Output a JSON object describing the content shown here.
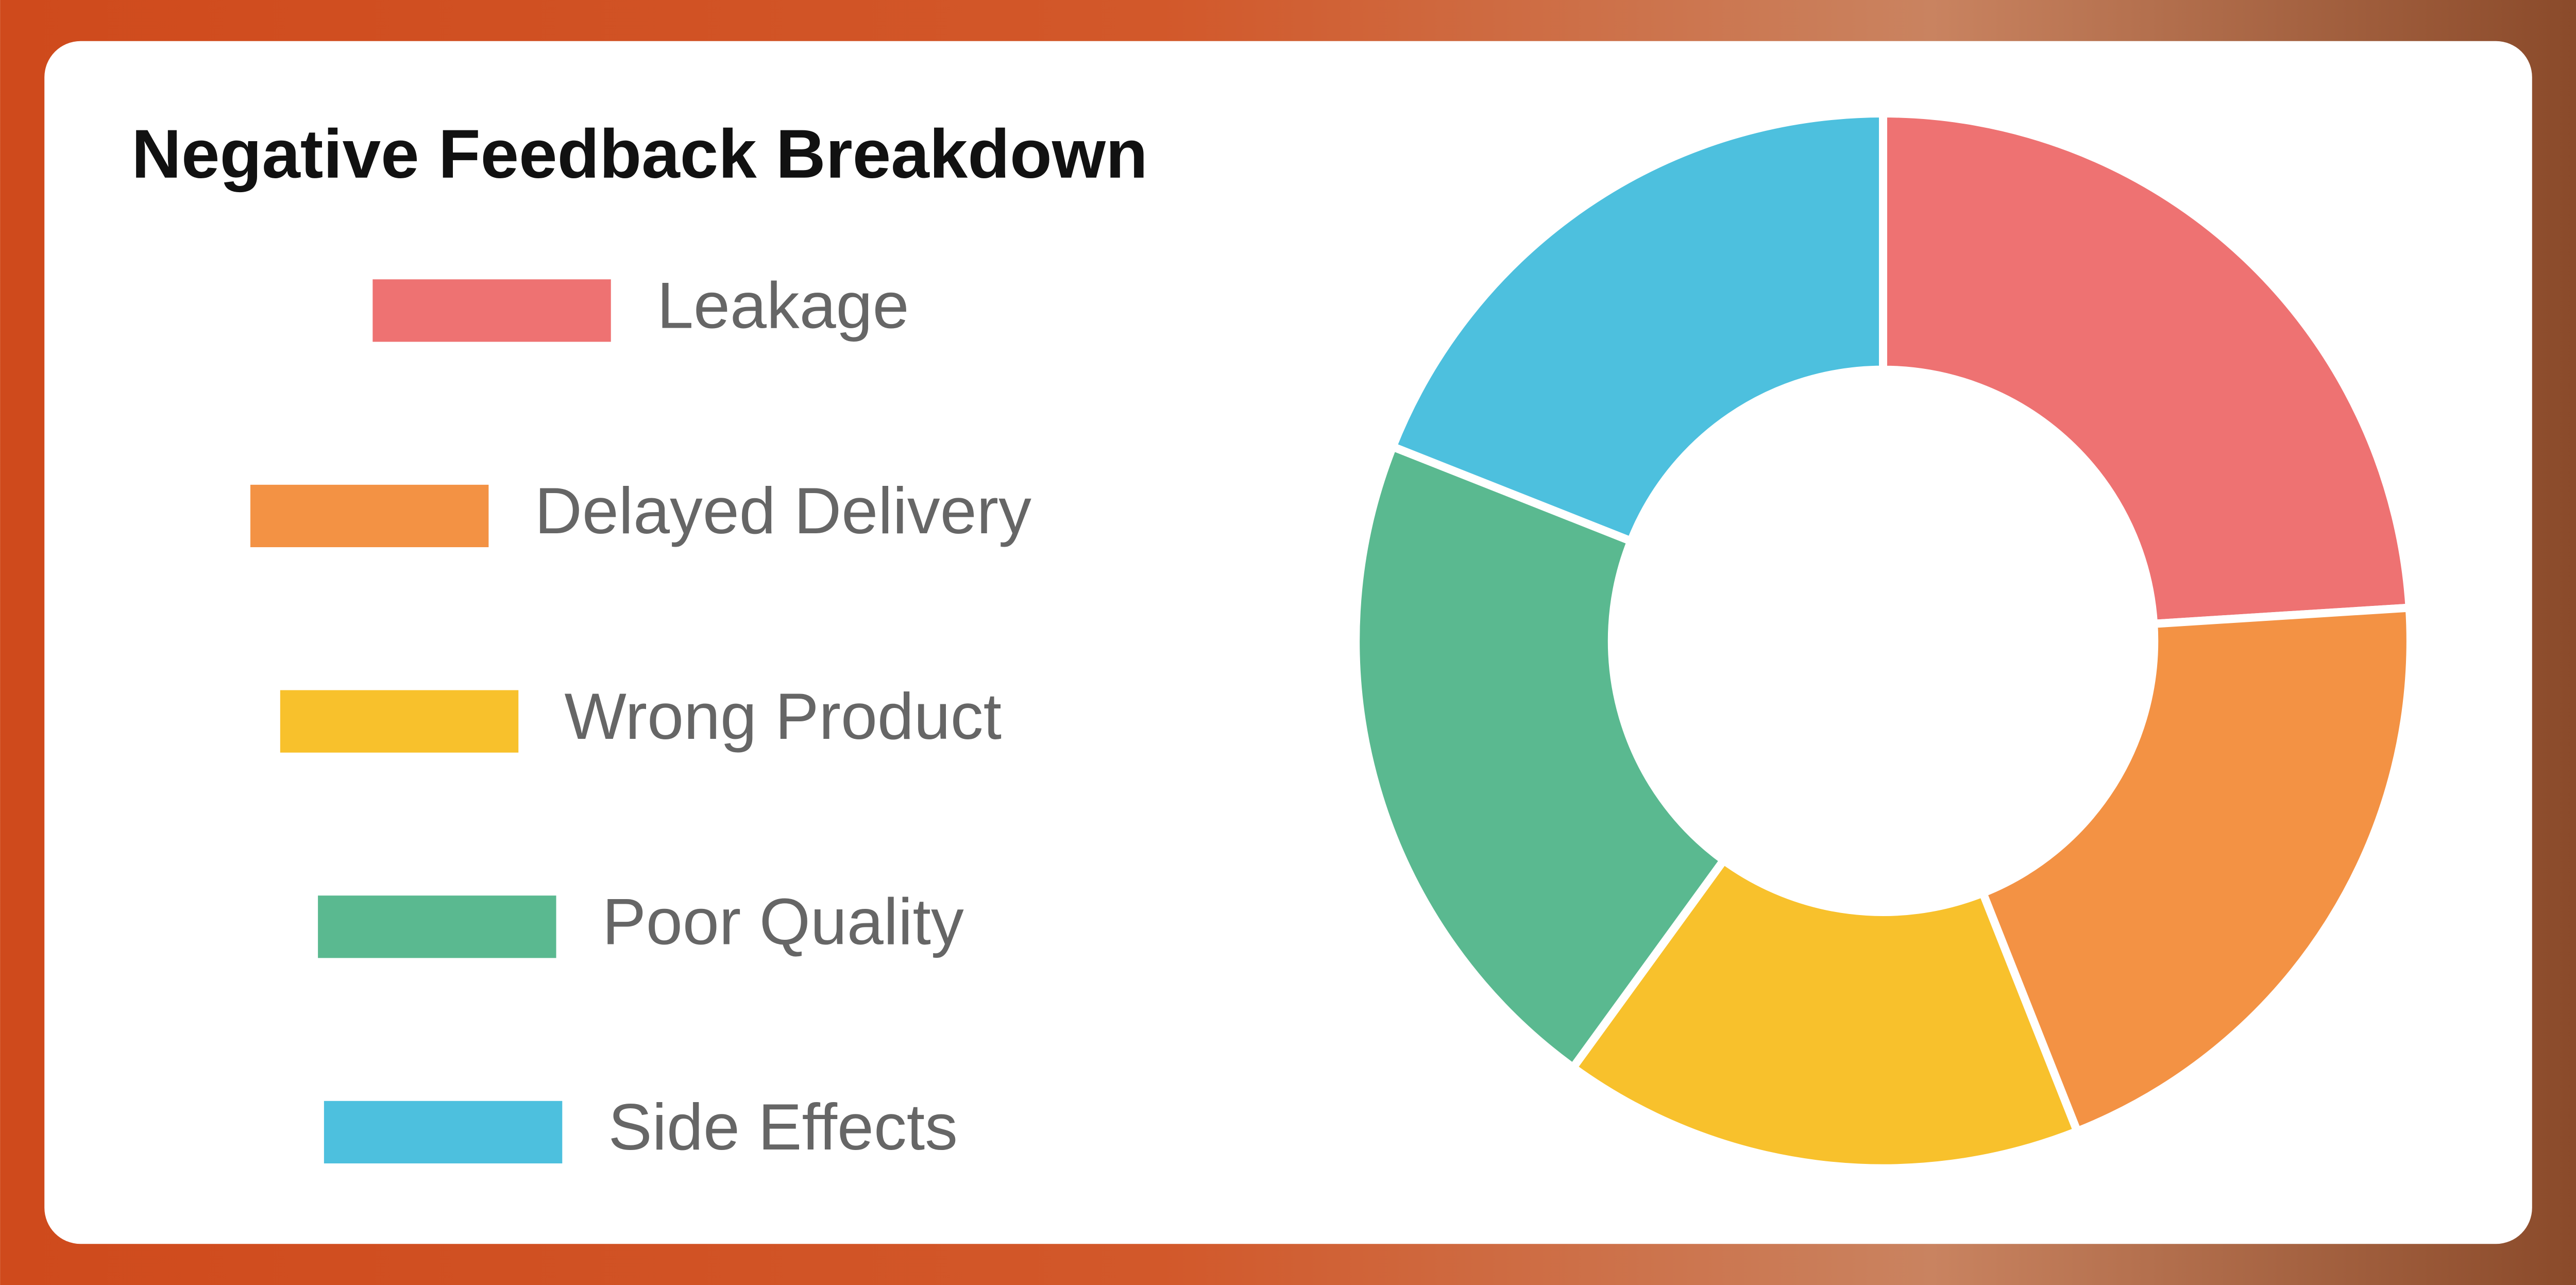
{
  "chart_data": {
    "type": "pie",
    "title": "Negative Feedback Breakdown",
    "categories": [
      "Leakage",
      "Delayed Delivery",
      "Wrong Product",
      "Poor Quality",
      "Side Effects"
    ],
    "values": [
      24,
      20,
      16,
      21,
      19
    ],
    "colors": [
      "#ee7272",
      "#f39244",
      "#f8c12c",
      "#5ab990",
      "#4dc0de"
    ],
    "legend": "left"
  }
}
